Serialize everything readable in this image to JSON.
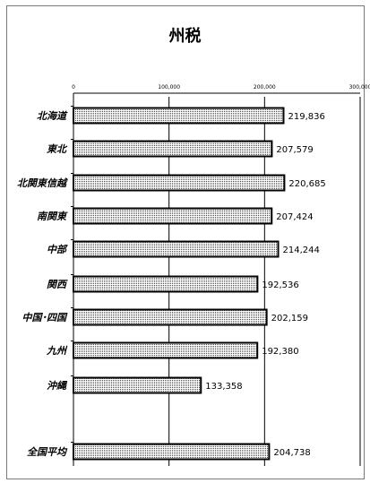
{
  "chart_data": {
    "type": "bar",
    "orientation": "horizontal",
    "title": "州税",
    "categories": [
      "北海道",
      "東北",
      "北関東信越",
      "南関東",
      "中部",
      "関西",
      "中国･四国",
      "九州",
      "沖縄",
      "",
      "全国平均"
    ],
    "values": [
      219836,
      207579,
      220685,
      207424,
      214244,
      192536,
      202159,
      192380,
      133358,
      null,
      204738
    ],
    "value_labels": [
      "219,836",
      "207,579",
      "220,685",
      "207,424",
      "214,244",
      "192,536",
      "202,159",
      "192,380",
      "133,358",
      "",
      "204,738"
    ],
    "xlim": [
      0,
      300000
    ],
    "xticks": [
      0,
      100000,
      200000,
      300000
    ],
    "xtick_labels": [
      "0",
      "100,000",
      "200,000",
      "300,000"
    ],
    "grid": true,
    "legend": "none",
    "bar_fill": "#ffffff",
    "bar_pattern_color": "#000000",
    "bar_stroke": "#000000"
  }
}
